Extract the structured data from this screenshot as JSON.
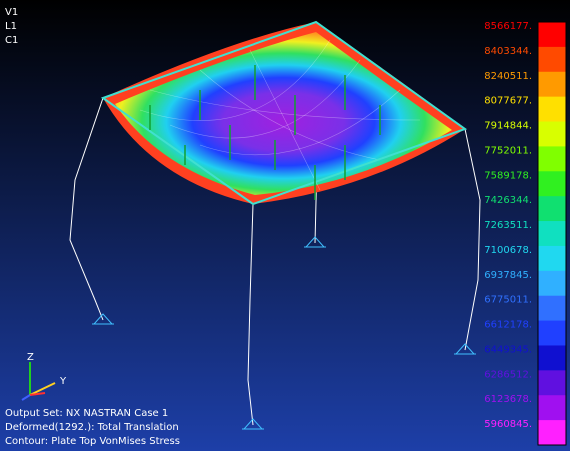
{
  "view": {
    "labels": [
      "V1",
      "L1",
      "C1"
    ]
  },
  "triad": {
    "z": "Z",
    "y": "Y"
  },
  "info": [
    "Output Set: NX NASTRAN Case 1",
    "Deformed(1292.): Total Translation",
    "Contour: Plate Top VonMises Stress"
  ],
  "legend": {
    "labels": [
      "8566177.",
      "8403344.",
      "8240511.",
      "8077677.",
      "7914844.",
      "7752011.",
      "7589178.",
      "7426344.",
      "7263511.",
      "7100678.",
      "6937845.",
      "6775011.",
      "6612178.",
      "6449345.",
      "6286512.",
      "6123678.",
      "5960845."
    ]
  }
}
